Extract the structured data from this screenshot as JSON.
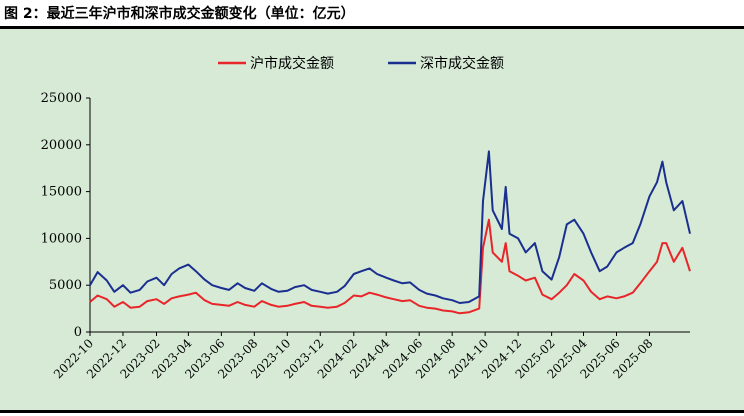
{
  "figure": {
    "title": "图 2：最近三年沪市和深市成交金额变化（单位：亿元）"
  },
  "chart_data": {
    "type": "line",
    "title": "图 2：最近三年沪市和深市成交金额变化（单位：亿元）",
    "xlabel": "",
    "ylabel": "",
    "ylim": [
      0,
      25000
    ],
    "yticks": [
      0,
      5000,
      10000,
      15000,
      20000,
      25000
    ],
    "xlim": [
      "2022-10",
      "2025-10-15"
    ],
    "xticks": [
      "2022-10",
      "2022-12",
      "2023-02",
      "2023-04",
      "2023-06",
      "2023-08",
      "2023-10",
      "2023-12",
      "2024-02",
      "2024-04",
      "2024-06",
      "2024-08",
      "2024-10",
      "2024-12",
      "2025-02",
      "2025-04",
      "2025-06",
      "2025-08"
    ],
    "grid": false,
    "legend": "top-center",
    "x": [
      "2022-10-01",
      "2022-10-15",
      "2022-11-01",
      "2022-11-15",
      "2022-12-01",
      "2022-12-15",
      "2023-01-01",
      "2023-01-15",
      "2023-02-01",
      "2023-02-15",
      "2023-03-01",
      "2023-03-15",
      "2023-04-01",
      "2023-04-15",
      "2023-05-01",
      "2023-05-15",
      "2023-06-01",
      "2023-06-15",
      "2023-07-01",
      "2023-07-15",
      "2023-08-01",
      "2023-08-15",
      "2023-09-01",
      "2023-09-15",
      "2023-10-01",
      "2023-10-15",
      "2023-11-01",
      "2023-11-15",
      "2023-12-01",
      "2023-12-15",
      "2024-01-01",
      "2024-01-15",
      "2024-02-01",
      "2024-02-15",
      "2024-03-01",
      "2024-03-15",
      "2024-04-01",
      "2024-04-15",
      "2024-05-01",
      "2024-05-15",
      "2024-06-01",
      "2024-06-15",
      "2024-07-01",
      "2024-07-15",
      "2024-08-01",
      "2024-08-15",
      "2024-09-01",
      "2024-09-20",
      "2024-09-27",
      "2024-10-08",
      "2024-10-15",
      "2024-11-01",
      "2024-11-08",
      "2024-11-15",
      "2024-12-01",
      "2024-12-15",
      "2025-01-01",
      "2025-01-15",
      "2025-02-01",
      "2025-02-15",
      "2025-03-01",
      "2025-03-15",
      "2025-04-01",
      "2025-04-15",
      "2025-05-01",
      "2025-05-15",
      "2025-06-01",
      "2025-06-15",
      "2025-07-01",
      "2025-07-15",
      "2025-08-01",
      "2025-08-15",
      "2025-08-25",
      "2025-09-01",
      "2025-09-15",
      "2025-10-01",
      "2025-10-15"
    ],
    "series": [
      {
        "name": "沪市成交金额",
        "color": "#e8262a",
        "values": [
          3200,
          3900,
          3500,
          2700,
          3200,
          2600,
          2700,
          3300,
          3500,
          3000,
          3600,
          3800,
          4000,
          4200,
          3400,
          3000,
          2900,
          2800,
          3200,
          2900,
          2700,
          3300,
          2900,
          2700,
          2800,
          3000,
          3200,
          2800,
          2700,
          2600,
          2700,
          3100,
          3900,
          3800,
          4200,
          4000,
          3700,
          3500,
          3300,
          3400,
          2800,
          2600,
          2500,
          2300,
          2200,
          2000,
          2100,
          2500,
          9000,
          12000,
          8500,
          7500,
          9500,
          6500,
          6000,
          5500,
          5800,
          4000,
          3500,
          4200,
          5000,
          6200,
          5500,
          4300,
          3500,
          3800,
          3600,
          3800,
          4200,
          5200,
          6500,
          7500,
          9500,
          9500,
          7500,
          9000,
          6500
        ]
      },
      {
        "name": "深市成交金额",
        "color": "#1a2f8f",
        "values": [
          5000,
          6400,
          5500,
          4300,
          5000,
          4200,
          4500,
          5400,
          5800,
          5000,
          6200,
          6800,
          7200,
          6500,
          5600,
          5000,
          4700,
          4500,
          5200,
          4700,
          4400,
          5200,
          4600,
          4300,
          4400,
          4800,
          5000,
          4500,
          4300,
          4100,
          4300,
          4900,
          6200,
          6500,
          6800,
          6200,
          5800,
          5500,
          5200,
          5300,
          4500,
          4100,
          3900,
          3600,
          3400,
          3100,
          3200,
          3800,
          14000,
          19300,
          13000,
          11000,
          15500,
          10500,
          10000,
          8500,
          9500,
          6500,
          5600,
          8000,
          11500,
          12000,
          10500,
          8500,
          6500,
          7000,
          8500,
          9000,
          9500,
          11500,
          14500,
          16000,
          18200,
          16000,
          13000,
          14000,
          10500
        ]
      }
    ]
  }
}
